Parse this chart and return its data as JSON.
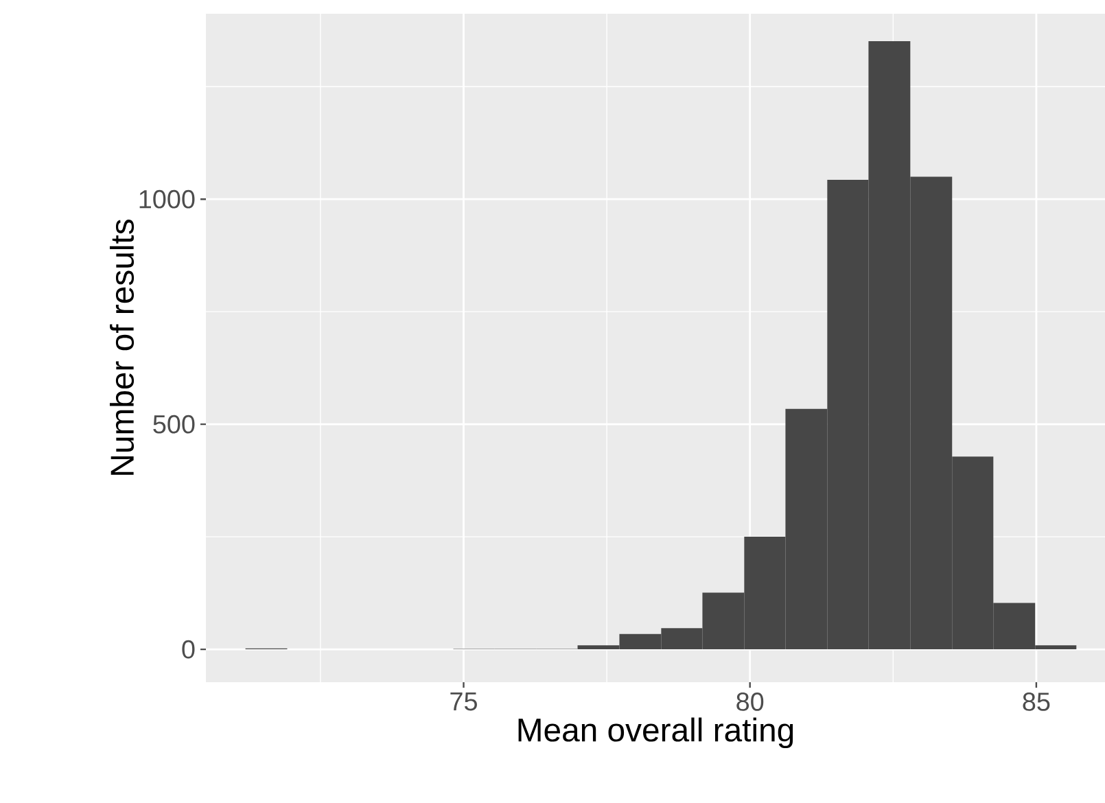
{
  "chart_data": {
    "type": "histogram",
    "xlabel": "Mean overall rating",
    "ylabel": "Number of results",
    "bins": [
      71.19,
      71.92,
      74.82,
      75.54,
      76.27,
      76.99,
      77.72,
      78.45,
      79.17,
      79.9,
      80.62,
      81.35,
      82.07,
      82.8,
      83.53,
      84.25,
      84.98,
      85.7
    ],
    "values": [
      2,
      0,
      1,
      1,
      1,
      9,
      34,
      47,
      126,
      250,
      534,
      1043,
      1351,
      1050,
      428,
      103,
      9
    ],
    "color": "#474747",
    "xlim": [
      70.5,
      86.2
    ],
    "ylim": [
      -73,
      1412
    ],
    "xticks": [
      75,
      80,
      85
    ],
    "yticks": [
      0,
      500,
      1000
    ],
    "grid": true
  }
}
